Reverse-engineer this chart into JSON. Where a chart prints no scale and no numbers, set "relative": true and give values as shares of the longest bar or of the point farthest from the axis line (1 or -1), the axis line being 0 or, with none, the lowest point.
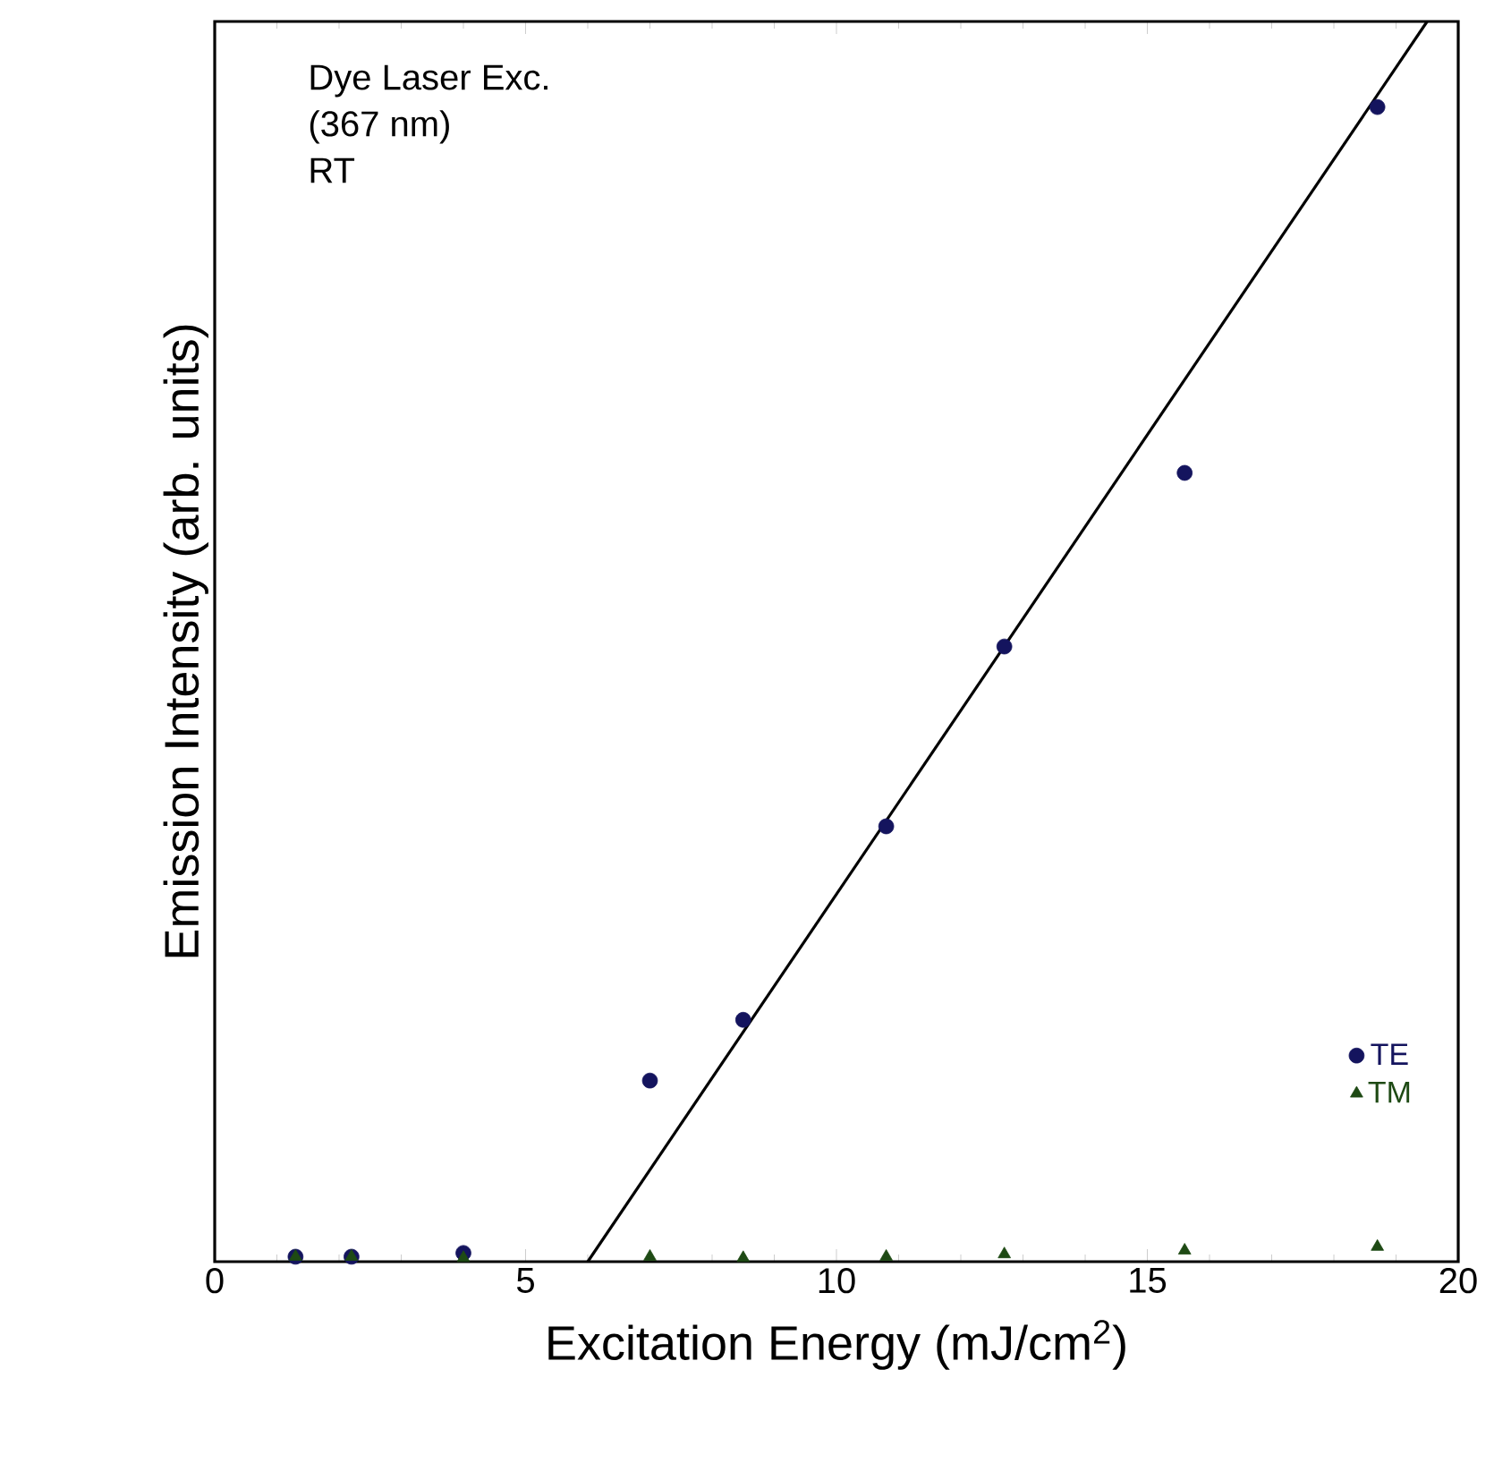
{
  "chart_data": {
    "type": "scatter",
    "xlabel": "Excitation Energy (mJ/cm$^{2}$)",
    "ylabel": "Emission Intensity (arb. units)",
    "relative": true,
    "x": [
      1.3,
      2.2,
      4.0,
      7.0,
      8.5,
      10.8,
      12.7,
      15.6,
      18.7
    ],
    "series": [
      {
        "name": "TE",
        "color": "#14145e",
        "marker": "circle",
        "values": [
          0.004,
          0.004,
          0.007,
          0.146,
          0.195,
          0.351,
          0.496,
          0.636,
          0.931
        ]
      },
      {
        "name": "TM",
        "color": "#1e4a14",
        "marker": "triangle",
        "values": [
          0.004,
          0.004,
          0.003,
          0.004,
          0.003,
          0.004,
          0.006,
          0.009,
          0.012
        ]
      },
      {
        "type": "line",
        "color": "#000000",
        "marker": "none",
        "x": [
          6.0,
          19.5
        ],
        "values": [
          0,
          1
        ]
      }
    ],
    "xlim": [
      0,
      20
    ],
    "xticks": [
      0,
      5,
      10,
      15,
      20
    ],
    "legend": "bottom right",
    "annotations": [
      "Dye Laser Exc.",
      "(367 nm)",
      "RT"
    ]
  }
}
